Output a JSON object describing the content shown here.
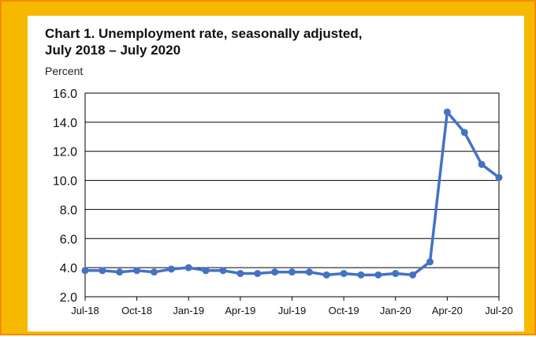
{
  "chart_data": {
    "type": "line",
    "title_line1": "Chart 1. Unemployment rate, seasonally adjusted,",
    "title_line2": "July 2018 – July 2020",
    "ylabel": "Percent",
    "ylim": [
      2.0,
      16.0
    ],
    "yticks": [
      "2.0",
      "4.0",
      "6.0",
      "8.0",
      "10.0",
      "12.0",
      "14.0",
      "16.0"
    ],
    "xtick_labels": [
      "Jul-18",
      "Oct-18",
      "Jan-19",
      "Apr-19",
      "Jul-19",
      "Oct-19",
      "Jan-20",
      "Apr-20",
      "Jul-20"
    ],
    "grid": "horizontal",
    "line_color": "#4472c4",
    "x": [
      "Jul-18",
      "Aug-18",
      "Sep-18",
      "Oct-18",
      "Nov-18",
      "Dec-18",
      "Jan-19",
      "Feb-19",
      "Mar-19",
      "Apr-19",
      "May-19",
      "Jun-19",
      "Jul-19",
      "Aug-19",
      "Sep-19",
      "Oct-19",
      "Nov-19",
      "Dec-19",
      "Jan-20",
      "Feb-20",
      "Mar-20",
      "Apr-20",
      "May-20",
      "Jun-20",
      "Jul-20"
    ],
    "values": [
      3.8,
      3.8,
      3.7,
      3.8,
      3.7,
      3.9,
      4.0,
      3.8,
      3.8,
      3.6,
      3.6,
      3.7,
      3.7,
      3.7,
      3.5,
      3.6,
      3.5,
      3.5,
      3.6,
      3.5,
      4.4,
      14.7,
      13.3,
      11.1,
      10.2
    ]
  }
}
